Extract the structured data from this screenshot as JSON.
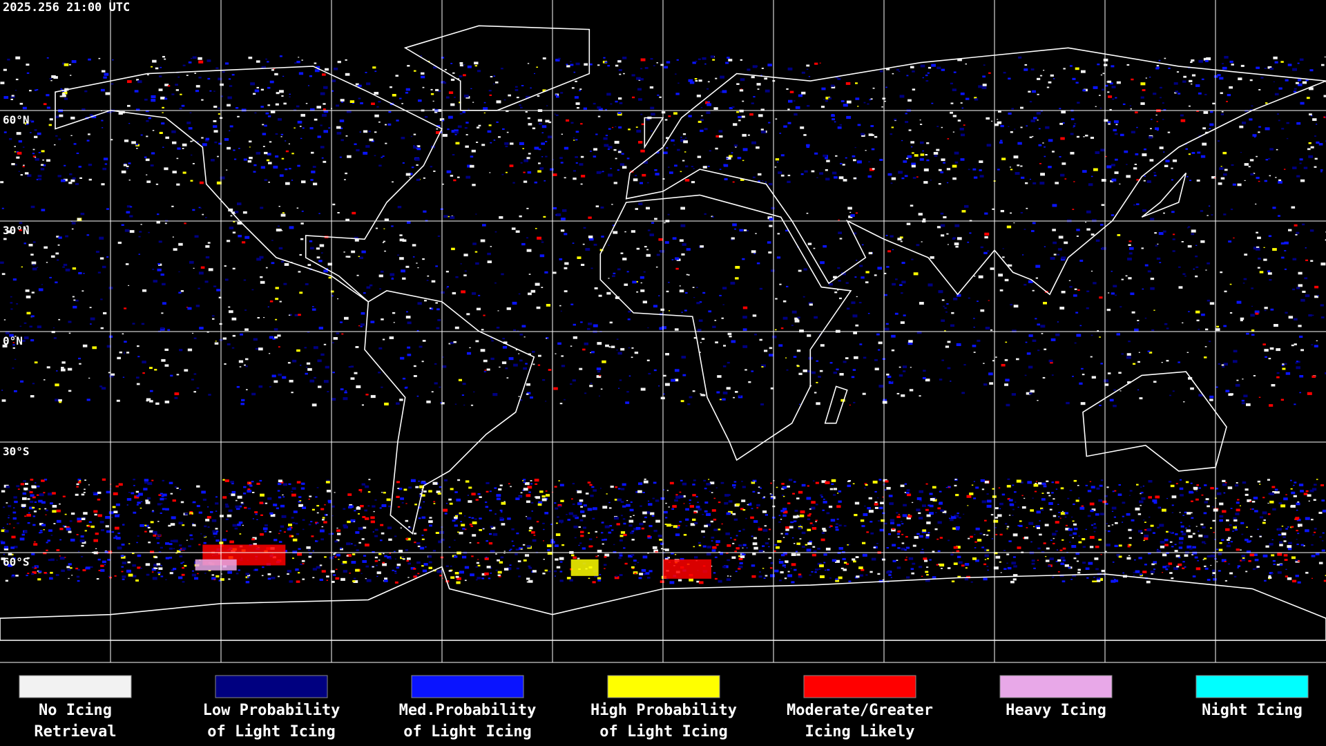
{
  "timestamp": "2025.256 21:00 UTC",
  "latitude_labels": [
    "60°N",
    "30°N",
    "0°N",
    "30°S",
    "60°S"
  ],
  "legend": [
    {
      "lines": [
        "No Icing",
        "Retrieval"
      ],
      "color": "#f2f2f2"
    },
    {
      "lines": [
        "Low Probability",
        "of Light Icing"
      ],
      "color": "#000080"
    },
    {
      "lines": [
        "Med.Probability",
        "of Light Icing"
      ],
      "color": "#0a14ff"
    },
    {
      "lines": [
        "High Probability",
        "of Light Icing"
      ],
      "color": "#ffff00"
    },
    {
      "lines": [
        "Moderate/Greater",
        "Icing Likely"
      ],
      "color": "#ff0000"
    },
    {
      "lines": [
        "Heavy Icing"
      ],
      "color": "#e8a8e8"
    },
    {
      "lines": [
        "Night Icing"
      ],
      "color": "#00ffff"
    }
  ]
}
